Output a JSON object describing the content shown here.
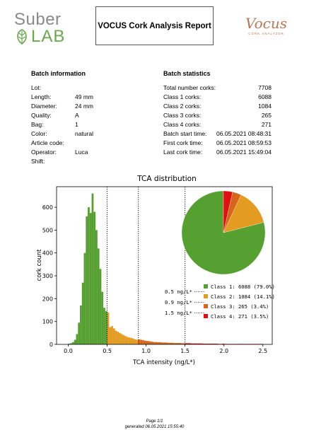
{
  "header": {
    "logo_left_line1": "Suber",
    "logo_left_line2": "LAB",
    "report_title": "VOCUS Cork Analysis Report",
    "logo_right_script": "Vocus",
    "logo_right_tagline": "CORK ANALYZER"
  },
  "batch_information": {
    "title": "Batch information",
    "rows": [
      {
        "label": "Lot:",
        "value": ""
      },
      {
        "label": "Length:",
        "value": "49 mm"
      },
      {
        "label": "Diameter:",
        "value": "24 mm"
      },
      {
        "label": "Quality:",
        "value": "A"
      },
      {
        "label": "Bag:",
        "value": "1"
      },
      {
        "label": "Color:",
        "value": "natural"
      },
      {
        "label": "Article code:",
        "value": ""
      },
      {
        "label": "Operator:",
        "value": "Luca"
      },
      {
        "label": "Shift:",
        "value": ""
      }
    ]
  },
  "batch_statistics": {
    "title": "Batch statistics",
    "rows": [
      {
        "label": "Total number corks:",
        "value": "7708"
      },
      {
        "label": "Class 1 corks:",
        "value": "6088"
      },
      {
        "label": "Class 2 corks:",
        "value": "1084"
      },
      {
        "label": "Class 3 corks:",
        "value": "265"
      },
      {
        "label": "Class 4 corks:",
        "value": "271"
      },
      {
        "label": "Batch start time:",
        "value": "06.05.2021 08:48:31"
      },
      {
        "label": "First cork time:",
        "value": "06.05.2021 08:59:53"
      },
      {
        "label": "Last cork time:",
        "value": "06.05.2021 15:49:04"
      }
    ]
  },
  "chart_data": {
    "type": "bar",
    "title": "TCA distribution",
    "xlabel": "TCA intensity (ng/L*)",
    "ylabel": "cork count",
    "xlim": [
      -0.15,
      2.62
    ],
    "ylim": [
      0,
      690
    ],
    "xticks": [
      "0.0",
      "0.5",
      "1.0",
      "1.5",
      "2.0",
      "2.5"
    ],
    "yticks": [
      "0",
      "100",
      "200",
      "300",
      "400",
      "500",
      "600"
    ],
    "bin_width": 0.025,
    "bins": [
      {
        "x": 0.0,
        "count": 3,
        "class": 1
      },
      {
        "x": 0.025,
        "count": 5,
        "class": 1
      },
      {
        "x": 0.05,
        "count": 10,
        "class": 1
      },
      {
        "x": 0.075,
        "count": 20,
        "class": 1
      },
      {
        "x": 0.1,
        "count": 45,
        "class": 1
      },
      {
        "x": 0.125,
        "count": 95,
        "class": 1
      },
      {
        "x": 0.15,
        "count": 170,
        "class": 1
      },
      {
        "x": 0.175,
        "count": 270,
        "class": 1
      },
      {
        "x": 0.2,
        "count": 400,
        "class": 1
      },
      {
        "x": 0.225,
        "count": 560,
        "class": 1
      },
      {
        "x": 0.25,
        "count": 600,
        "class": 1
      },
      {
        "x": 0.275,
        "count": 575,
        "class": 1
      },
      {
        "x": 0.3,
        "count": 660,
        "class": 1
      },
      {
        "x": 0.325,
        "count": 580,
        "class": 1
      },
      {
        "x": 0.35,
        "count": 500,
        "class": 1
      },
      {
        "x": 0.375,
        "count": 420,
        "class": 1
      },
      {
        "x": 0.4,
        "count": 330,
        "class": 1
      },
      {
        "x": 0.425,
        "count": 230,
        "class": 1
      },
      {
        "x": 0.45,
        "count": 160,
        "class": 1
      },
      {
        "x": 0.475,
        "count": 145,
        "class": 1
      },
      {
        "x": 0.5,
        "count": 140,
        "class": 2
      },
      {
        "x": 0.525,
        "count": 75,
        "class": 2
      },
      {
        "x": 0.55,
        "count": 80,
        "class": 2
      },
      {
        "x": 0.575,
        "count": 70,
        "class": 2
      },
      {
        "x": 0.6,
        "count": 60,
        "class": 2
      },
      {
        "x": 0.625,
        "count": 55,
        "class": 2
      },
      {
        "x": 0.65,
        "count": 50,
        "class": 2
      },
      {
        "x": 0.675,
        "count": 45,
        "class": 2
      },
      {
        "x": 0.7,
        "count": 40,
        "class": 2
      },
      {
        "x": 0.725,
        "count": 36,
        "class": 2
      },
      {
        "x": 0.75,
        "count": 32,
        "class": 2
      },
      {
        "x": 0.775,
        "count": 30,
        "class": 2
      },
      {
        "x": 0.8,
        "count": 28,
        "class": 2
      },
      {
        "x": 0.825,
        "count": 25,
        "class": 2
      },
      {
        "x": 0.85,
        "count": 22,
        "class": 2
      },
      {
        "x": 0.875,
        "count": 20,
        "class": 2
      },
      {
        "x": 0.9,
        "count": 22,
        "class": 3
      },
      {
        "x": 0.925,
        "count": 20,
        "class": 3
      },
      {
        "x": 0.95,
        "count": 18,
        "class": 3
      },
      {
        "x": 0.975,
        "count": 16,
        "class": 3
      },
      {
        "x": 1.0,
        "count": 15,
        "class": 3
      },
      {
        "x": 1.025,
        "count": 14,
        "class": 3
      },
      {
        "x": 1.05,
        "count": 12,
        "class": 3
      },
      {
        "x": 1.075,
        "count": 11,
        "class": 3
      },
      {
        "x": 1.1,
        "count": 10,
        "class": 3
      },
      {
        "x": 1.125,
        "count": 10,
        "class": 3
      },
      {
        "x": 1.15,
        "count": 9,
        "class": 3
      },
      {
        "x": 1.175,
        "count": 9,
        "class": 3
      },
      {
        "x": 1.2,
        "count": 8,
        "class": 3
      },
      {
        "x": 1.225,
        "count": 8,
        "class": 3
      },
      {
        "x": 1.25,
        "count": 8,
        "class": 3
      },
      {
        "x": 1.275,
        "count": 7,
        "class": 3
      },
      {
        "x": 1.3,
        "count": 7,
        "class": 3
      },
      {
        "x": 1.325,
        "count": 7,
        "class": 3
      },
      {
        "x": 1.35,
        "count": 6,
        "class": 3
      },
      {
        "x": 1.375,
        "count": 6,
        "class": 3
      },
      {
        "x": 1.4,
        "count": 6,
        "class": 3
      },
      {
        "x": 1.425,
        "count": 6,
        "class": 3
      },
      {
        "x": 1.45,
        "count": 5,
        "class": 3
      },
      {
        "x": 1.475,
        "count": 5,
        "class": 3
      },
      {
        "x": 1.5,
        "count": 5,
        "class": 4
      },
      {
        "x": 1.525,
        "count": 5,
        "class": 4
      },
      {
        "x": 1.55,
        "count": 5,
        "class": 4
      },
      {
        "x": 1.575,
        "count": 4,
        "class": 4
      },
      {
        "x": 1.6,
        "count": 4,
        "class": 4
      },
      {
        "x": 1.625,
        "count": 4,
        "class": 4
      },
      {
        "x": 1.65,
        "count": 4,
        "class": 4
      },
      {
        "x": 1.675,
        "count": 4,
        "class": 4
      },
      {
        "x": 1.7,
        "count": 4,
        "class": 4
      },
      {
        "x": 1.725,
        "count": 3,
        "class": 4
      },
      {
        "x": 1.75,
        "count": 3,
        "class": 4
      },
      {
        "x": 1.775,
        "count": 3,
        "class": 4
      },
      {
        "x": 1.8,
        "count": 3,
        "class": 4
      },
      {
        "x": 1.825,
        "count": 3,
        "class": 4
      },
      {
        "x": 1.85,
        "count": 3,
        "class": 4
      },
      {
        "x": 1.875,
        "count": 3,
        "class": 4
      },
      {
        "x": 1.9,
        "count": 3,
        "class": 4
      },
      {
        "x": 1.925,
        "count": 2,
        "class": 4
      },
      {
        "x": 1.95,
        "count": 2,
        "class": 4
      },
      {
        "x": 1.975,
        "count": 3,
        "class": 4
      },
      {
        "x": 2.0,
        "count": 2,
        "class": 4
      },
      {
        "x": 2.025,
        "count": 2,
        "class": 4
      },
      {
        "x": 2.05,
        "count": 2,
        "class": 4
      },
      {
        "x": 2.075,
        "count": 2,
        "class": 4
      },
      {
        "x": 2.1,
        "count": 2,
        "class": 4
      },
      {
        "x": 2.125,
        "count": 2,
        "class": 4
      },
      {
        "x": 2.15,
        "count": 2,
        "class": 4
      },
      {
        "x": 2.175,
        "count": 2,
        "class": 4
      },
      {
        "x": 2.2,
        "count": 2,
        "class": 4
      },
      {
        "x": 2.225,
        "count": 2,
        "class": 4
      },
      {
        "x": 2.25,
        "count": 2,
        "class": 4
      },
      {
        "x": 2.275,
        "count": 2,
        "class": 4
      },
      {
        "x": 2.3,
        "count": 2,
        "class": 4
      },
      {
        "x": 2.325,
        "count": 2,
        "class": 4
      },
      {
        "x": 2.35,
        "count": 2,
        "class": 4
      },
      {
        "x": 2.375,
        "count": 2,
        "class": 4
      },
      {
        "x": 2.4,
        "count": 2,
        "class": 4
      },
      {
        "x": 2.425,
        "count": 2,
        "class": 4
      },
      {
        "x": 2.45,
        "count": 2,
        "class": 4
      },
      {
        "x": 2.475,
        "count": 2,
        "class": 4
      }
    ],
    "thresholds": [
      {
        "x": 0.5,
        "label": "0.5 ng/L*"
      },
      {
        "x": 0.9,
        "label": "0.9 ng/L*"
      },
      {
        "x": 1.5,
        "label": "1.5 ng/L*"
      }
    ],
    "classes": [
      {
        "name": "Class 1",
        "legend": "Class 1: 6088 (79.0%)",
        "value": 6088,
        "percent": 79.0,
        "color": "#56a032"
      },
      {
        "name": "Class 2",
        "legend": "Class 2: 1084 (14.1%)",
        "value": 1084,
        "percent": 14.1,
        "color": "#e39b22"
      },
      {
        "name": "Class 3",
        "legend": "Class 3:  265 (3.4%)",
        "value": 265,
        "percent": 3.4,
        "color": "#d8661a"
      },
      {
        "name": "Class 4",
        "legend": "Class 4:  271 (3.5%)",
        "value": 271,
        "percent": 3.5,
        "color": "#e01010"
      }
    ],
    "pie": {
      "type": "pie",
      "values": [
        6088,
        1084,
        265,
        271
      ],
      "start_angle_deg": 90,
      "direction": "counterclockwise"
    },
    "legend_position": "lower-right",
    "grid": false
  },
  "footer": {
    "page": "Page 1/1",
    "generated": "generated 06.05.2021 15:55:40"
  }
}
